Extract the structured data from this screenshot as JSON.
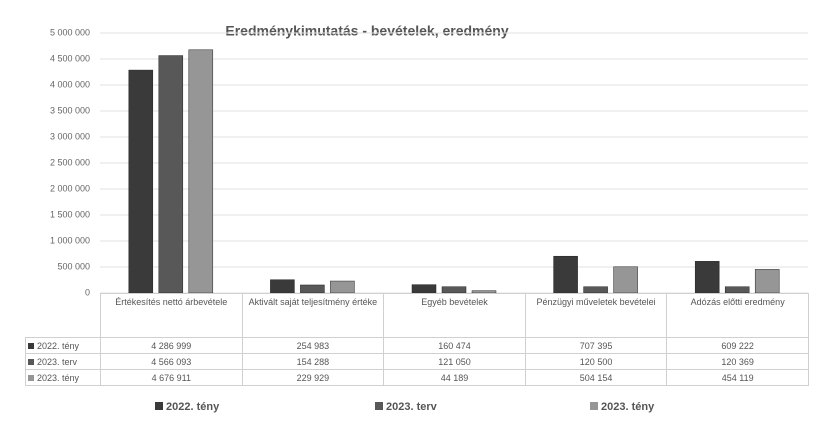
{
  "chart_data": {
    "type": "bar",
    "title": "Eredménykimutatás - bevételek, eredmény",
    "categories": [
      "Értékesítés nettó árbevétele",
      "Aktivált saját teljesítmény értéke",
      "Egyéb bevételek",
      "Pénzügyi műveletek bevételei",
      "Adózás előtti eredmény"
    ],
    "series": [
      {
        "name": "2022. tény",
        "color": "#3a3a3a",
        "values": [
          4286999,
          254983,
          160474,
          707395,
          609222
        ],
        "value_labels": [
          "4 286 999",
          "254 983",
          "160 474",
          "707 395",
          "609 222"
        ]
      },
      {
        "name": "2023. terv",
        "color": "#585858",
        "values": [
          4566093,
          154288,
          121050,
          120500,
          120369
        ],
        "value_labels": [
          "4 566 093",
          "154 288",
          "121 050",
          "120 500",
          "120 369"
        ]
      },
      {
        "name": "2023. tény",
        "color": "#969696",
        "values": [
          4676911,
          229929,
          44189,
          504154,
          454119
        ],
        "value_labels": [
          "4 676 911",
          "229 929",
          "44 189",
          "504 154",
          "454 119"
        ]
      }
    ],
    "ylim": [
      0,
      5000000
    ],
    "yticks": [
      0,
      {
        "value": 500000,
        "label": "500 000"
      },
      {
        "value": 1000000,
        "label": "1 000 000"
      },
      {
        "value": 1500000,
        "label": "1 500 000"
      },
      {
        "value": 2000000,
        "label": "2 000 000"
      },
      {
        "value": 2500000,
        "label": "2 500 000"
      },
      {
        "value": 3000000,
        "label": "3 000 000"
      },
      {
        "value": 3500000,
        "label": "3 500 000"
      },
      {
        "value": 4000000,
        "label": "4 000 000"
      },
      {
        "value": 4500000,
        "label": "4 500 000"
      },
      {
        "value": 5000000,
        "label": "5 000 000"
      }
    ],
    "grid": true,
    "legend": "bottom"
  }
}
